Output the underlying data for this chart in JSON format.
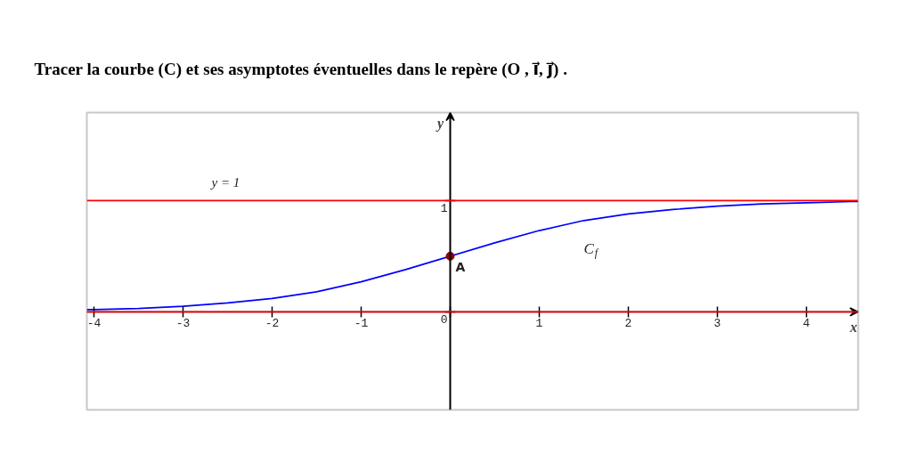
{
  "chart_data": {
    "type": "line",
    "title": "Tracer la courbe (C) et ses asymptotes éventuelles dans le repère (O , i⃗, j⃗) .",
    "xlabel": "x",
    "ylabel": "y",
    "xlim": [
      -4.08,
      4.58
    ],
    "ylim": [
      -0.88,
      1.79
    ],
    "xticks": [
      -4,
      -3,
      -2,
      -1,
      {
        "value": 0,
        "label": null
      },
      1,
      2,
      3,
      4
    ],
    "yticks": [
      0,
      1
    ],
    "ref_lines": [
      {
        "axis": "y",
        "value": 1,
        "label": "y = 1",
        "color": "#ff0000"
      },
      {
        "axis": "y",
        "value": 0,
        "color": "#ff0000"
      }
    ],
    "series": [
      {
        "name": "C$_{f}$",
        "color": "#0000ff",
        "line_style": "solid",
        "x": [
          -4.08,
          -4,
          -3.5,
          -3,
          -2.5,
          -2,
          -1.5,
          -1,
          -0.5,
          0,
          0.5,
          1,
          1.5,
          2,
          2.5,
          3,
          3.5,
          4,
          4.5,
          4.58
        ],
        "values": [
          0.02,
          0.02,
          0.03,
          0.05,
          0.08,
          0.12,
          0.18,
          0.27,
          0.38,
          0.5,
          0.62,
          0.73,
          0.82,
          0.88,
          0.92,
          0.95,
          0.97,
          0.98,
          0.99,
          0.99
        ]
      },
      {
        "type": "scatter",
        "name": "A",
        "color": "#8b0000",
        "marker": "circle",
        "x": [
          0
        ],
        "values": [
          0.5
        ]
      }
    ]
  }
}
